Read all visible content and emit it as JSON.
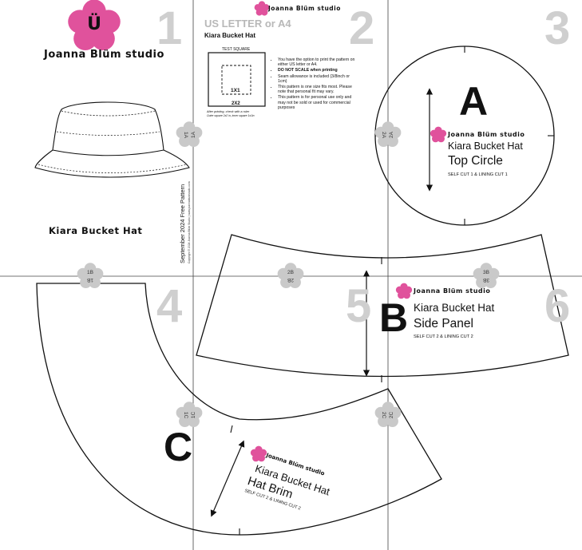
{
  "brand": {
    "name": "Joanna Blüm studio",
    "logo_letter": "Ü",
    "accent_color": "#e0529c",
    "tile_flower_color": "#c9c9c9"
  },
  "cover": {
    "hat_name": "Kiara Bucket Hat",
    "vertical_date": "September 2024 Free Pattern",
    "vertical_copyright": "Copyright © 2024 Joanna Blüm Studio | www.joannablumstudio.com"
  },
  "info": {
    "heading": "US LETTER or A4",
    "subheading": "Kiara Bucket Hat",
    "test_square_label": "TEST SQUARE",
    "inner_square_label": "1X1",
    "outer_square_label": "2X2",
    "test_note_line1": "After printing, check with a ruler",
    "test_note_line2": "Outer square 2x2 in, inner square 1x1in",
    "bullets": [
      "You have the option to print the pattern on either US letter or A4.",
      "DO NOT SCALE when printing",
      "Seam allowance is included (3/8inch or 1cm)",
      "This pattern is one size fits most. Please note that personal fit may vary.",
      "This pattern is for personal use only and may not be sold or used for commercial purposes"
    ]
  },
  "page_numbers": [
    "1",
    "2",
    "3",
    "4",
    "5",
    "6"
  ],
  "tile_markers": {
    "a_left": "1A",
    "a_right": "2A",
    "b1": "1B",
    "b2": "2B",
    "b3": "3B",
    "c1": "1C",
    "c2": "2C"
  },
  "pieces": {
    "A": {
      "letter": "A",
      "title": "Kiara Bucket Hat",
      "name": "Top Circle",
      "cut": "SELF CUT 1 & LINING CUT 1"
    },
    "B": {
      "letter": "B",
      "title": "Kiara Bucket Hat",
      "name": "Side Panel",
      "cut": "SELF CUT 2 & LINING CUT 2"
    },
    "C": {
      "letter": "C",
      "title": "Kiara Bucket Hat",
      "name": "Hat Brim",
      "cut": "SELF CUT 2 & LINING CUT 2"
    }
  }
}
